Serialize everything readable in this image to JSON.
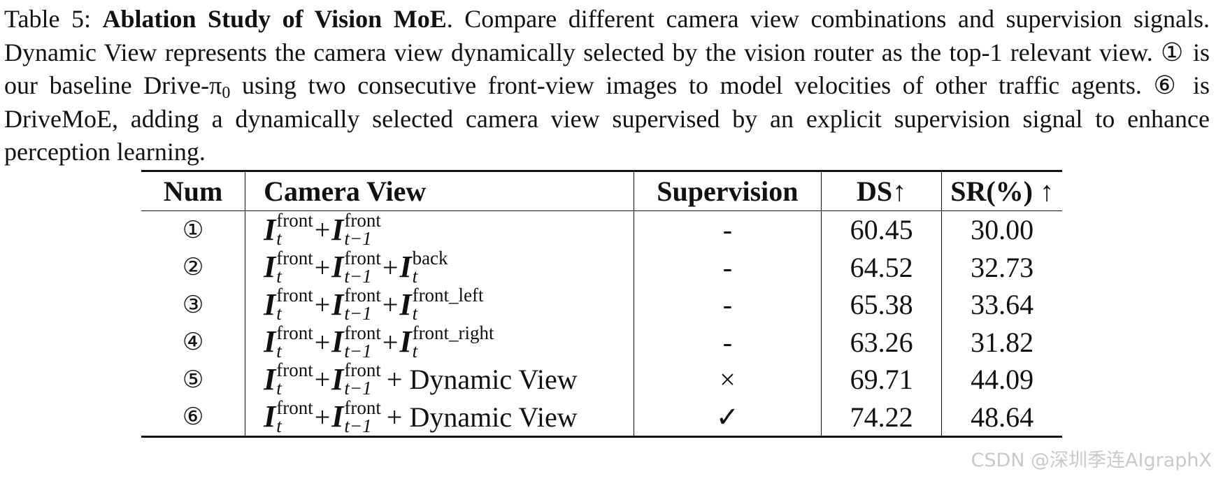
{
  "caption": {
    "label": "Table 5:",
    "bold_title": "Ablation Study of Vision MoE",
    "part1": ". Compare different camera view combinations and supervision signals. Dynamic View represents the camera view dynamically selected by the vision router as the top-1 relevant view. ① is our baseline Drive-π",
    "pi_subscript": "0",
    "part2": " using two consecutive front-view images to model velocities of other traffic agents. ⑥ is DriveMoE, adding a dynamically selected camera view supervised by an explicit supervision signal to enhance perception learning."
  },
  "table": {
    "headers": {
      "num": "Num",
      "camera_view": "Camera View",
      "supervision": "Supervision",
      "ds": "DS↑",
      "sr": "SR(%) ↑"
    },
    "math": {
      "var": "I",
      "front": "front",
      "t": "t",
      "t_minus_1": "t−1",
      "back": "back",
      "front_left": "front_left",
      "front_right": "front_right",
      "plus": "+",
      "dynamic_view": "+ Dynamic View"
    },
    "rows": [
      {
        "num": "①",
        "supervision": "-",
        "ds": "60.45",
        "sr": "30.00"
      },
      {
        "num": "②",
        "supervision": "-",
        "ds": "64.52",
        "sr": "32.73"
      },
      {
        "num": "③",
        "supervision": "-",
        "ds": "65.38",
        "sr": "33.64"
      },
      {
        "num": "④",
        "supervision": "-",
        "ds": "63.26",
        "sr": "31.82"
      },
      {
        "num": "⑤",
        "supervision": "×",
        "ds": "69.71",
        "sr": "44.09"
      },
      {
        "num": "⑥",
        "supervision": "✓",
        "ds": "74.22",
        "sr": "48.64"
      }
    ]
  },
  "watermark": "CSDN @深圳季连AIgraphX"
}
